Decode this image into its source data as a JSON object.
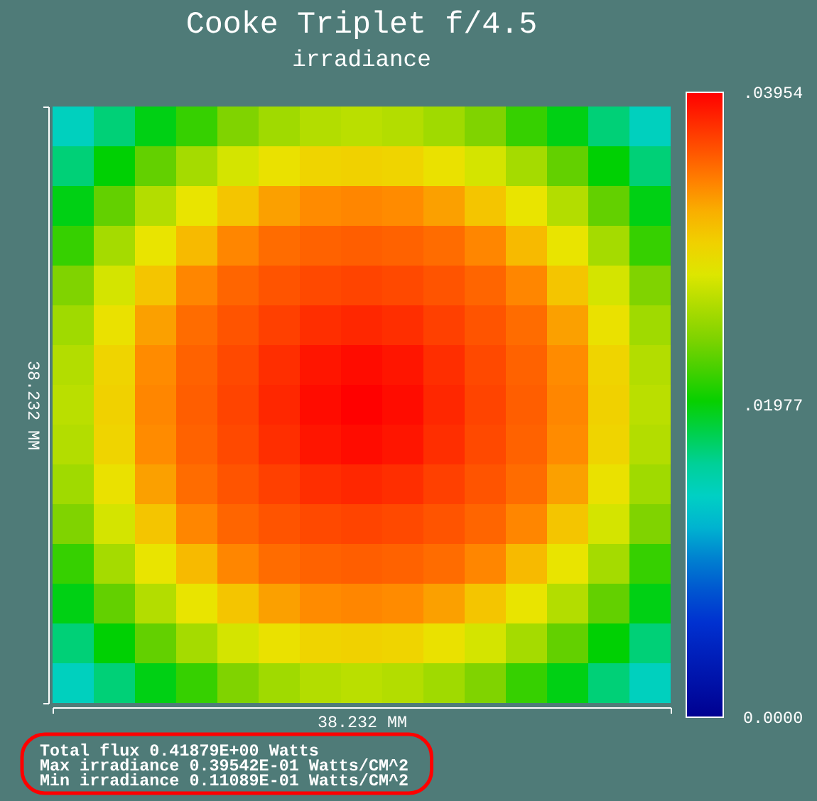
{
  "chart_data": {
    "type": "heatmap",
    "title": "Cooke Triplet f/4.5",
    "subtitle": "irradiance",
    "xlabel": "38.232 MM",
    "ylabel": "38.232 MM",
    "categories": [
      null,
      null,
      null,
      null,
      null,
      null,
      null,
      null,
      null,
      null,
      null,
      null,
      null,
      null,
      null
    ],
    "y_categories": [
      null,
      null,
      null,
      null,
      null,
      null,
      null,
      null,
      null,
      null,
      null,
      null,
      null,
      null,
      null
    ],
    "cells": [
      [
        0.0143,
        0.017,
        0.0193,
        0.0215,
        0.024,
        0.0254,
        0.0262,
        0.0265,
        0.0262,
        0.0254,
        0.024,
        0.0215,
        0.0193,
        0.017,
        0.0143
      ],
      [
        0.017,
        0.0197,
        0.0229,
        0.0256,
        0.0276,
        0.0289,
        0.0298,
        0.03,
        0.0298,
        0.0289,
        0.0276,
        0.0256,
        0.0229,
        0.0197,
        0.017
      ],
      [
        0.0193,
        0.0229,
        0.0262,
        0.0287,
        0.0308,
        0.0326,
        0.0335,
        0.0337,
        0.0335,
        0.0326,
        0.0308,
        0.0287,
        0.0262,
        0.0229,
        0.0193
      ],
      [
        0.0215,
        0.0256,
        0.0287,
        0.0315,
        0.0337,
        0.0348,
        0.0352,
        0.0354,
        0.0352,
        0.0348,
        0.0337,
        0.0315,
        0.0287,
        0.0256,
        0.0215
      ],
      [
        0.024,
        0.0276,
        0.0308,
        0.0337,
        0.0351,
        0.0358,
        0.0363,
        0.0365,
        0.0363,
        0.0358,
        0.0351,
        0.0337,
        0.0308,
        0.0276,
        0.024
      ],
      [
        0.0254,
        0.0289,
        0.0326,
        0.0348,
        0.0358,
        0.0367,
        0.0375,
        0.0378,
        0.0375,
        0.0367,
        0.0358,
        0.0348,
        0.0326,
        0.0289,
        0.0254
      ],
      [
        0.0262,
        0.0298,
        0.0335,
        0.0352,
        0.0363,
        0.0375,
        0.0386,
        0.039,
        0.0386,
        0.0375,
        0.0363,
        0.0352,
        0.0335,
        0.0298,
        0.0262
      ],
      [
        0.0265,
        0.03,
        0.0337,
        0.0354,
        0.0365,
        0.0378,
        0.039,
        0.0395,
        0.039,
        0.0378,
        0.0365,
        0.0354,
        0.0337,
        0.03,
        0.0265
      ],
      [
        0.0262,
        0.0298,
        0.0335,
        0.0352,
        0.0363,
        0.0375,
        0.0386,
        0.039,
        0.0386,
        0.0375,
        0.0363,
        0.0352,
        0.0335,
        0.0298,
        0.0262
      ],
      [
        0.0254,
        0.0289,
        0.0326,
        0.0348,
        0.0358,
        0.0367,
        0.0375,
        0.0378,
        0.0375,
        0.0367,
        0.0358,
        0.0348,
        0.0326,
        0.0289,
        0.0254
      ],
      [
        0.024,
        0.0276,
        0.0308,
        0.0337,
        0.0351,
        0.0358,
        0.0363,
        0.0365,
        0.0363,
        0.0358,
        0.0351,
        0.0337,
        0.0308,
        0.0276,
        0.024
      ],
      [
        0.0215,
        0.0256,
        0.0287,
        0.0315,
        0.0337,
        0.0348,
        0.0352,
        0.0354,
        0.0352,
        0.0348,
        0.0337,
        0.0315,
        0.0287,
        0.0256,
        0.0215
      ],
      [
        0.0193,
        0.0229,
        0.0262,
        0.0287,
        0.0308,
        0.0326,
        0.0335,
        0.0337,
        0.0335,
        0.0326,
        0.0308,
        0.0287,
        0.0262,
        0.0229,
        0.0193
      ],
      [
        0.017,
        0.0197,
        0.0229,
        0.0256,
        0.0276,
        0.0289,
        0.0298,
        0.03,
        0.0298,
        0.0289,
        0.0276,
        0.0256,
        0.0229,
        0.0197,
        0.017
      ],
      [
        0.0143,
        0.017,
        0.0193,
        0.0215,
        0.024,
        0.0254,
        0.0262,
        0.0265,
        0.0262,
        0.0254,
        0.024,
        0.0215,
        0.0193,
        0.017,
        0.0143
      ]
    ],
    "clim": [
      0,
      0.03954
    ],
    "cticks": [
      {
        "value": 0,
        "label": "0.0000"
      },
      {
        "value": 0.01977,
        "label": ".01977"
      },
      {
        "value": 0.03954,
        "label": ".03954"
      }
    ],
    "annotations": [
      "Total flux  0.41879E+00 Watts",
      "Max irradiance  0.39542E-01 Watts/CM^2",
      "Min irradiance  0.11089E-01 Watts/CM^2"
    ]
  }
}
